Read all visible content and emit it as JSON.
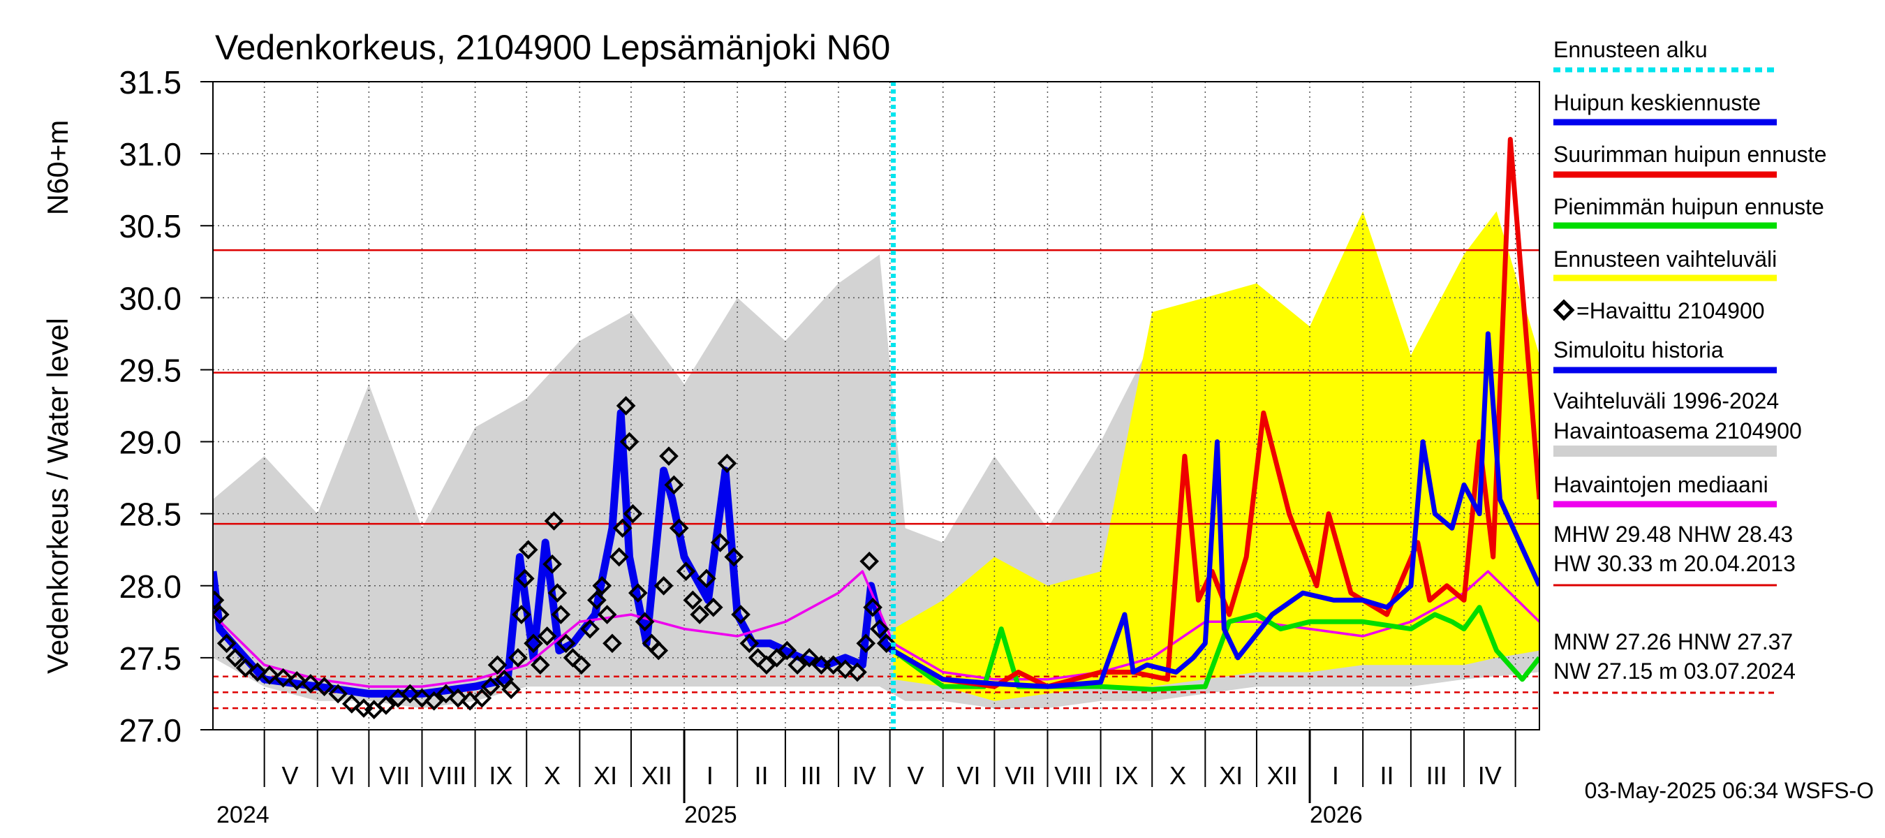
{
  "chart_data": {
    "type": "line",
    "title": "Vedenkorkeus, 2104900 Lepsämänjoki N60",
    "ylabel_main": "Vedenkorkeus / Water level",
    "ylabel_unit": "N60+m",
    "ylim": [
      27.0,
      31.5
    ],
    "yticks": [
      27.0,
      27.5,
      28.0,
      28.5,
      29.0,
      29.5,
      30.0,
      30.5,
      31.0,
      31.5
    ],
    "ytick_labels": [
      "27.0",
      "27.5",
      "28.0",
      "28.5",
      "29.0",
      "29.5",
      "30.0",
      "30.5",
      "31.0",
      "31.5"
    ],
    "x_range": [
      "2024-04-01",
      "2026-05-15"
    ],
    "month_labels": [
      {
        "label": "V",
        "date": "2024-05-16"
      },
      {
        "label": "VI",
        "date": "2024-06-16"
      },
      {
        "label": "VII",
        "date": "2024-07-16"
      },
      {
        "label": "VIII",
        "date": "2024-08-16"
      },
      {
        "label": "IX",
        "date": "2024-09-16"
      },
      {
        "label": "X",
        "date": "2024-10-16"
      },
      {
        "label": "XI",
        "date": "2024-11-16"
      },
      {
        "label": "XII",
        "date": "2024-12-16"
      },
      {
        "label": "I",
        "date": "2025-01-16"
      },
      {
        "label": "II",
        "date": "2025-02-15"
      },
      {
        "label": "III",
        "date": "2025-03-16"
      },
      {
        "label": "IV",
        "date": "2025-04-16"
      },
      {
        "label": "V",
        "date": "2025-05-16"
      },
      {
        "label": "VI",
        "date": "2025-06-16"
      },
      {
        "label": "VII",
        "date": "2025-07-16"
      },
      {
        "label": "VIII",
        "date": "2025-08-16"
      },
      {
        "label": "IX",
        "date": "2025-09-16"
      },
      {
        "label": "X",
        "date": "2025-10-16"
      },
      {
        "label": "XI",
        "date": "2025-11-16"
      },
      {
        "label": "XII",
        "date": "2025-12-16"
      },
      {
        "label": "I",
        "date": "2026-01-16"
      },
      {
        "label": "II",
        "date": "2026-02-15"
      },
      {
        "label": "III",
        "date": "2026-03-16"
      },
      {
        "label": "IV",
        "date": "2026-04-16"
      }
    ],
    "year_labels": [
      {
        "label": "2024",
        "date": "2024-04-01"
      },
      {
        "label": "2025",
        "date": "2025-01-01"
      },
      {
        "label": "2026",
        "date": "2026-01-01"
      }
    ],
    "forecast_start": "2025-05-03",
    "reference_lines": [
      {
        "name": "HW",
        "value": 30.33,
        "style": "solid"
      },
      {
        "name": "MHW",
        "value": 29.48,
        "style": "solid"
      },
      {
        "name": "NHW",
        "value": 28.43,
        "style": "solid"
      },
      {
        "name": "HNW",
        "value": 27.37,
        "style": "dashed"
      },
      {
        "name": "MNW",
        "value": 27.26,
        "style": "dashed"
      },
      {
        "name": "NW",
        "value": 27.15,
        "style": "dashed"
      }
    ],
    "legend": [
      {
        "label": "Ennusteen alku",
        "color": "#00e5ee",
        "style": "dotted"
      },
      {
        "label": "Huipun keskiennuste",
        "color": "#0000ee",
        "style": "solid"
      },
      {
        "label": "Suurimman huipun ennuste",
        "color": "#ee0000",
        "style": "solid"
      },
      {
        "label": "Pienimmän huipun ennuste",
        "color": "#00dd00",
        "style": "solid"
      },
      {
        "label": "Ennusteen vaihteluväli",
        "color": "#ffff00",
        "style": "solid"
      },
      {
        "label": "=Havaittu 2104900",
        "color": "#000000",
        "style": "marker"
      },
      {
        "label": "Simuloitu historia",
        "color": "#0000ee",
        "style": "solid"
      },
      {
        "label": "Vaihteluväli 1996-2024",
        "color": "#d0d0d0",
        "style": "none"
      },
      {
        "label": " Havaintoasema 2104900",
        "color": "#d0d0d0",
        "style": "solid"
      },
      {
        "label": "Havaintojen mediaani",
        "color": "#ee00ee",
        "style": "solid"
      }
    ],
    "stats_lines": [
      "MHW  29.48 NHW  28.43",
      "HW  30.33 m 20.04.2013",
      "MNW  27.26 HNW  27.37",
      "NW  27.15 m 03.07.2024"
    ],
    "footer": "03-May-2025 06:34 WSFS-O",
    "colors": {
      "history_range": "#d3d3d3",
      "forecast_range": "#ffff00",
      "simulated": "#0000ee",
      "mean_forecast": "#0000ee",
      "max_forecast": "#ee0000",
      "min_forecast": "#00dd00",
      "median": "#ee00ee",
      "observed": "#000000",
      "reference": "#dd0000",
      "forecast_start": "#00e5ee"
    },
    "series": [
      {
        "key": "history_band",
        "kind": "band",
        "x": [
          "2024-04-01",
          "2024-05-01",
          "2024-06-01",
          "2024-07-01",
          "2024-08-01",
          "2024-09-01",
          "2024-10-01",
          "2024-11-01",
          "2024-12-01",
          "2025-01-01",
          "2025-02-01",
          "2025-03-01",
          "2025-04-01",
          "2025-04-25",
          "2025-05-10",
          "2025-06-01",
          "2025-07-01",
          "2025-08-01",
          "2025-09-01",
          "2025-10-01",
          "2025-11-01",
          "2025-12-01",
          "2026-01-01",
          "2026-02-01",
          "2026-03-01",
          "2026-04-01",
          "2026-05-15"
        ],
        "upper": [
          28.6,
          28.9,
          28.5,
          29.4,
          28.4,
          29.1,
          29.3,
          29.7,
          29.9,
          29.4,
          30.0,
          29.7,
          30.1,
          30.3,
          28.4,
          28.3,
          28.9,
          28.4,
          29.0,
          29.7,
          29.9,
          29.5,
          29.6,
          29.7,
          29.3,
          29.9,
          29.2
        ],
        "lower": [
          27.5,
          27.3,
          27.2,
          27.2,
          27.15,
          27.2,
          27.3,
          27.3,
          27.3,
          27.3,
          27.3,
          27.3,
          27.3,
          27.3,
          27.2,
          27.2,
          27.15,
          27.15,
          27.2,
          27.2,
          27.25,
          27.3,
          27.3,
          27.3,
          27.3,
          27.35,
          27.4
        ]
      },
      {
        "key": "forecast_band",
        "kind": "band",
        "x": [
          "2025-05-03",
          "2025-06-01",
          "2025-07-01",
          "2025-08-01",
          "2025-09-01",
          "2025-10-01",
          "2025-11-01",
          "2025-12-01",
          "2026-01-01",
          "2026-02-01",
          "2026-03-01",
          "2026-04-01",
          "2026-04-20",
          "2026-05-15"
        ],
        "upper": [
          27.7,
          27.9,
          28.2,
          28.0,
          28.1,
          29.9,
          30.0,
          30.1,
          29.8,
          30.6,
          29.6,
          30.3,
          30.6,
          29.6
        ],
        "lower": [
          27.35,
          27.3,
          27.2,
          27.25,
          27.3,
          27.3,
          27.35,
          27.4,
          27.4,
          27.45,
          27.45,
          27.45,
          27.5,
          27.55
        ]
      },
      {
        "key": "median",
        "name": "Havaintojen mediaani",
        "kind": "line",
        "x": [
          "2024-04-01",
          "2024-05-01",
          "2024-06-01",
          "2024-07-01",
          "2024-08-01",
          "2024-09-01",
          "2024-10-01",
          "2024-11-01",
          "2024-12-01",
          "2025-01-01",
          "2025-02-01",
          "2025-03-01",
          "2025-04-01",
          "2025-04-15",
          "2025-05-03",
          "2025-06-01",
          "2025-07-01",
          "2025-08-01",
          "2025-09-01",
          "2025-10-01",
          "2025-11-01",
          "2025-12-01",
          "2026-01-01",
          "2026-02-01",
          "2026-03-01",
          "2026-04-01",
          "2026-04-15",
          "2026-05-15"
        ],
        "values": [
          27.8,
          27.45,
          27.35,
          27.3,
          27.3,
          27.35,
          27.45,
          27.75,
          27.8,
          27.7,
          27.65,
          27.75,
          27.95,
          28.1,
          27.6,
          27.4,
          27.35,
          27.35,
          27.4,
          27.5,
          27.75,
          27.75,
          27.7,
          27.65,
          27.75,
          27.95,
          28.1,
          27.75
        ]
      },
      {
        "key": "simulated",
        "name": "Simuloitu historia",
        "kind": "line",
        "x": [
          "2024-04-01",
          "2024-04-05",
          "2024-05-01",
          "2024-06-01",
          "2024-07-01",
          "2024-08-01",
          "2024-09-01",
          "2024-09-20",
          "2024-09-27",
          "2024-10-05",
          "2024-10-12",
          "2024-10-20",
          "2024-10-28",
          "2024-11-10",
          "2024-11-20",
          "2024-11-25",
          "2024-11-30",
          "2024-12-10",
          "2024-12-20",
          "2024-12-25",
          "2025-01-01",
          "2025-01-15",
          "2025-01-25",
          "2025-02-01",
          "2025-02-10",
          "2025-02-20",
          "2025-03-10",
          "2025-03-25",
          "2025-04-05",
          "2025-04-15",
          "2025-04-20",
          "2025-04-28",
          "2025-05-03"
        ],
        "values": [
          28.1,
          27.7,
          27.35,
          27.3,
          27.25,
          27.25,
          27.3,
          27.35,
          28.2,
          27.5,
          28.3,
          27.55,
          27.6,
          27.8,
          28.4,
          29.2,
          28.2,
          27.6,
          28.8,
          28.6,
          28.2,
          27.9,
          28.8,
          27.8,
          27.6,
          27.6,
          27.5,
          27.45,
          27.5,
          27.45,
          28.0,
          27.6,
          27.55
        ]
      },
      {
        "key": "mean_forecast",
        "name": "Huipun keskiennuste",
        "kind": "line",
        "x": [
          "2025-05-03",
          "2025-06-01",
          "2025-07-01",
          "2025-08-01",
          "2025-09-01",
          "2025-09-15",
          "2025-09-20",
          "2025-09-28",
          "2025-10-15",
          "2025-10-25",
          "2025-11-01",
          "2025-11-08",
          "2025-11-12",
          "2025-11-20",
          "2025-12-10",
          "2025-12-28",
          "2026-01-15",
          "2026-02-01",
          "2026-02-15",
          "2026-03-01",
          "2026-03-08",
          "2026-03-15",
          "2026-03-25",
          "2026-04-01",
          "2026-04-10",
          "2026-04-15",
          "2026-04-22",
          "2026-05-15"
        ],
        "values": [
          27.55,
          27.35,
          27.32,
          27.3,
          27.33,
          27.8,
          27.4,
          27.45,
          27.4,
          27.5,
          27.6,
          29.0,
          27.7,
          27.5,
          27.8,
          27.95,
          27.9,
          27.9,
          27.85,
          28.0,
          29.0,
          28.5,
          28.4,
          28.7,
          28.5,
          29.75,
          28.6,
          28.0
        ]
      },
      {
        "key": "max_forecast",
        "name": "Suurimman huipun ennuste",
        "kind": "line",
        "x": [
          "2025-05-03",
          "2025-06-01",
          "2025-07-01",
          "2025-07-15",
          "2025-08-01",
          "2025-09-01",
          "2025-09-20",
          "2025-10-10",
          "2025-10-20",
          "2025-10-28",
          "2025-11-05",
          "2025-11-15",
          "2025-11-25",
          "2025-12-05",
          "2025-12-20",
          "2026-01-05",
          "2026-01-12",
          "2026-01-25",
          "2026-02-15",
          "2026-03-05",
          "2026-03-12",
          "2026-03-22",
          "2026-04-01",
          "2026-04-10",
          "2026-04-18",
          "2026-04-28",
          "2026-05-15"
        ],
        "values": [
          27.55,
          27.35,
          27.3,
          27.4,
          27.3,
          27.4,
          27.4,
          27.35,
          28.9,
          27.9,
          28.1,
          27.8,
          28.2,
          29.2,
          28.5,
          28.0,
          28.5,
          27.95,
          27.8,
          28.3,
          27.9,
          28.0,
          27.9,
          29.0,
          28.2,
          31.1,
          28.6
        ]
      },
      {
        "key": "min_forecast",
        "name": "Pienimmän huipun ennuste",
        "kind": "line",
        "x": [
          "2025-05-03",
          "2025-06-01",
          "2025-06-25",
          "2025-07-05",
          "2025-07-15",
          "2025-08-01",
          "2025-09-01",
          "2025-10-01",
          "2025-11-01",
          "2025-11-15",
          "2025-12-01",
          "2025-12-15",
          "2026-01-01",
          "2026-02-01",
          "2026-03-01",
          "2026-03-15",
          "2026-03-25",
          "2026-04-01",
          "2026-04-10",
          "2026-04-20",
          "2026-05-05",
          "2026-05-15"
        ],
        "values": [
          27.55,
          27.3,
          27.3,
          27.7,
          27.3,
          27.3,
          27.3,
          27.28,
          27.3,
          27.75,
          27.8,
          27.7,
          27.75,
          27.75,
          27.7,
          27.8,
          27.75,
          27.7,
          27.85,
          27.55,
          27.35,
          27.5
        ]
      }
    ],
    "observed_points": [
      [
        "2024-04-02",
        27.9
      ],
      [
        "2024-04-05",
        27.8
      ],
      [
        "2024-04-09",
        27.6
      ],
      [
        "2024-04-14",
        27.5
      ],
      [
        "2024-04-20",
        27.43
      ],
      [
        "2024-04-27",
        27.4
      ],
      [
        "2024-05-04",
        27.38
      ],
      [
        "2024-05-12",
        27.36
      ],
      [
        "2024-05-20",
        27.34
      ],
      [
        "2024-05-28",
        27.32
      ],
      [
        "2024-06-05",
        27.3
      ],
      [
        "2024-06-13",
        27.25
      ],
      [
        "2024-06-21",
        27.18
      ],
      [
        "2024-06-28",
        27.15
      ],
      [
        "2024-07-04",
        27.14
      ],
      [
        "2024-07-11",
        27.17
      ],
      [
        "2024-07-18",
        27.22
      ],
      [
        "2024-07-25",
        27.25
      ],
      [
        "2024-08-01",
        27.22
      ],
      [
        "2024-08-08",
        27.2
      ],
      [
        "2024-08-15",
        27.25
      ],
      [
        "2024-08-22",
        27.22
      ],
      [
        "2024-08-29",
        27.2
      ],
      [
        "2024-09-05",
        27.22
      ],
      [
        "2024-09-10",
        27.3
      ],
      [
        "2024-09-14",
        27.45
      ],
      [
        "2024-09-18",
        27.35
      ],
      [
        "2024-09-22",
        27.28
      ],
      [
        "2024-09-26",
        27.5
      ],
      [
        "2024-09-28",
        27.8
      ],
      [
        "2024-09-30",
        28.05
      ],
      [
        "2024-10-02",
        28.25
      ],
      [
        "2024-10-05",
        27.6
      ],
      [
        "2024-10-09",
        27.45
      ],
      [
        "2024-10-13",
        27.65
      ],
      [
        "2024-10-16",
        28.15
      ],
      [
        "2024-10-17",
        28.45
      ],
      [
        "2024-10-19",
        27.95
      ],
      [
        "2024-10-21",
        27.8
      ],
      [
        "2024-10-24",
        27.6
      ],
      [
        "2024-10-28",
        27.5
      ],
      [
        "2024-11-02",
        27.45
      ],
      [
        "2024-11-07",
        27.7
      ],
      [
        "2024-11-11",
        27.9
      ],
      [
        "2024-11-14",
        28.0
      ],
      [
        "2024-11-17",
        27.8
      ],
      [
        "2024-11-20",
        27.6
      ],
      [
        "2024-11-24",
        28.2
      ],
      [
        "2024-11-26",
        28.4
      ],
      [
        "2024-11-28",
        29.25
      ],
      [
        "2024-11-30",
        29.0
      ],
      [
        "2024-12-02",
        28.5
      ],
      [
        "2024-12-05",
        27.95
      ],
      [
        "2024-12-09",
        27.75
      ],
      [
        "2024-12-13",
        27.6
      ],
      [
        "2024-12-17",
        27.55
      ],
      [
        "2024-12-20",
        28.0
      ],
      [
        "2024-12-23",
        28.9
      ],
      [
        "2024-12-26",
        28.7
      ],
      [
        "2024-12-29",
        28.4
      ],
      [
        "2025-01-02",
        28.1
      ],
      [
        "2025-01-06",
        27.9
      ],
      [
        "2025-01-10",
        27.8
      ],
      [
        "2025-01-14",
        28.05
      ],
      [
        "2025-01-18",
        27.85
      ],
      [
        "2025-01-22",
        28.3
      ],
      [
        "2025-01-26",
        28.85
      ],
      [
        "2025-01-30",
        28.2
      ],
      [
        "2025-02-03",
        27.8
      ],
      [
        "2025-02-08",
        27.6
      ],
      [
        "2025-02-13",
        27.5
      ],
      [
        "2025-02-18",
        27.45
      ],
      [
        "2025-02-24",
        27.5
      ],
      [
        "2025-03-02",
        27.55
      ],
      [
        "2025-03-08",
        27.45
      ],
      [
        "2025-03-15",
        27.5
      ],
      [
        "2025-03-22",
        27.45
      ],
      [
        "2025-03-29",
        27.45
      ],
      [
        "2025-04-05",
        27.42
      ],
      [
        "2025-04-12",
        27.4
      ],
      [
        "2025-04-17",
        27.6
      ],
      [
        "2025-04-19",
        28.17
      ],
      [
        "2025-04-21",
        27.85
      ],
      [
        "2025-04-25",
        27.7
      ],
      [
        "2025-04-29",
        27.6
      ]
    ]
  }
}
